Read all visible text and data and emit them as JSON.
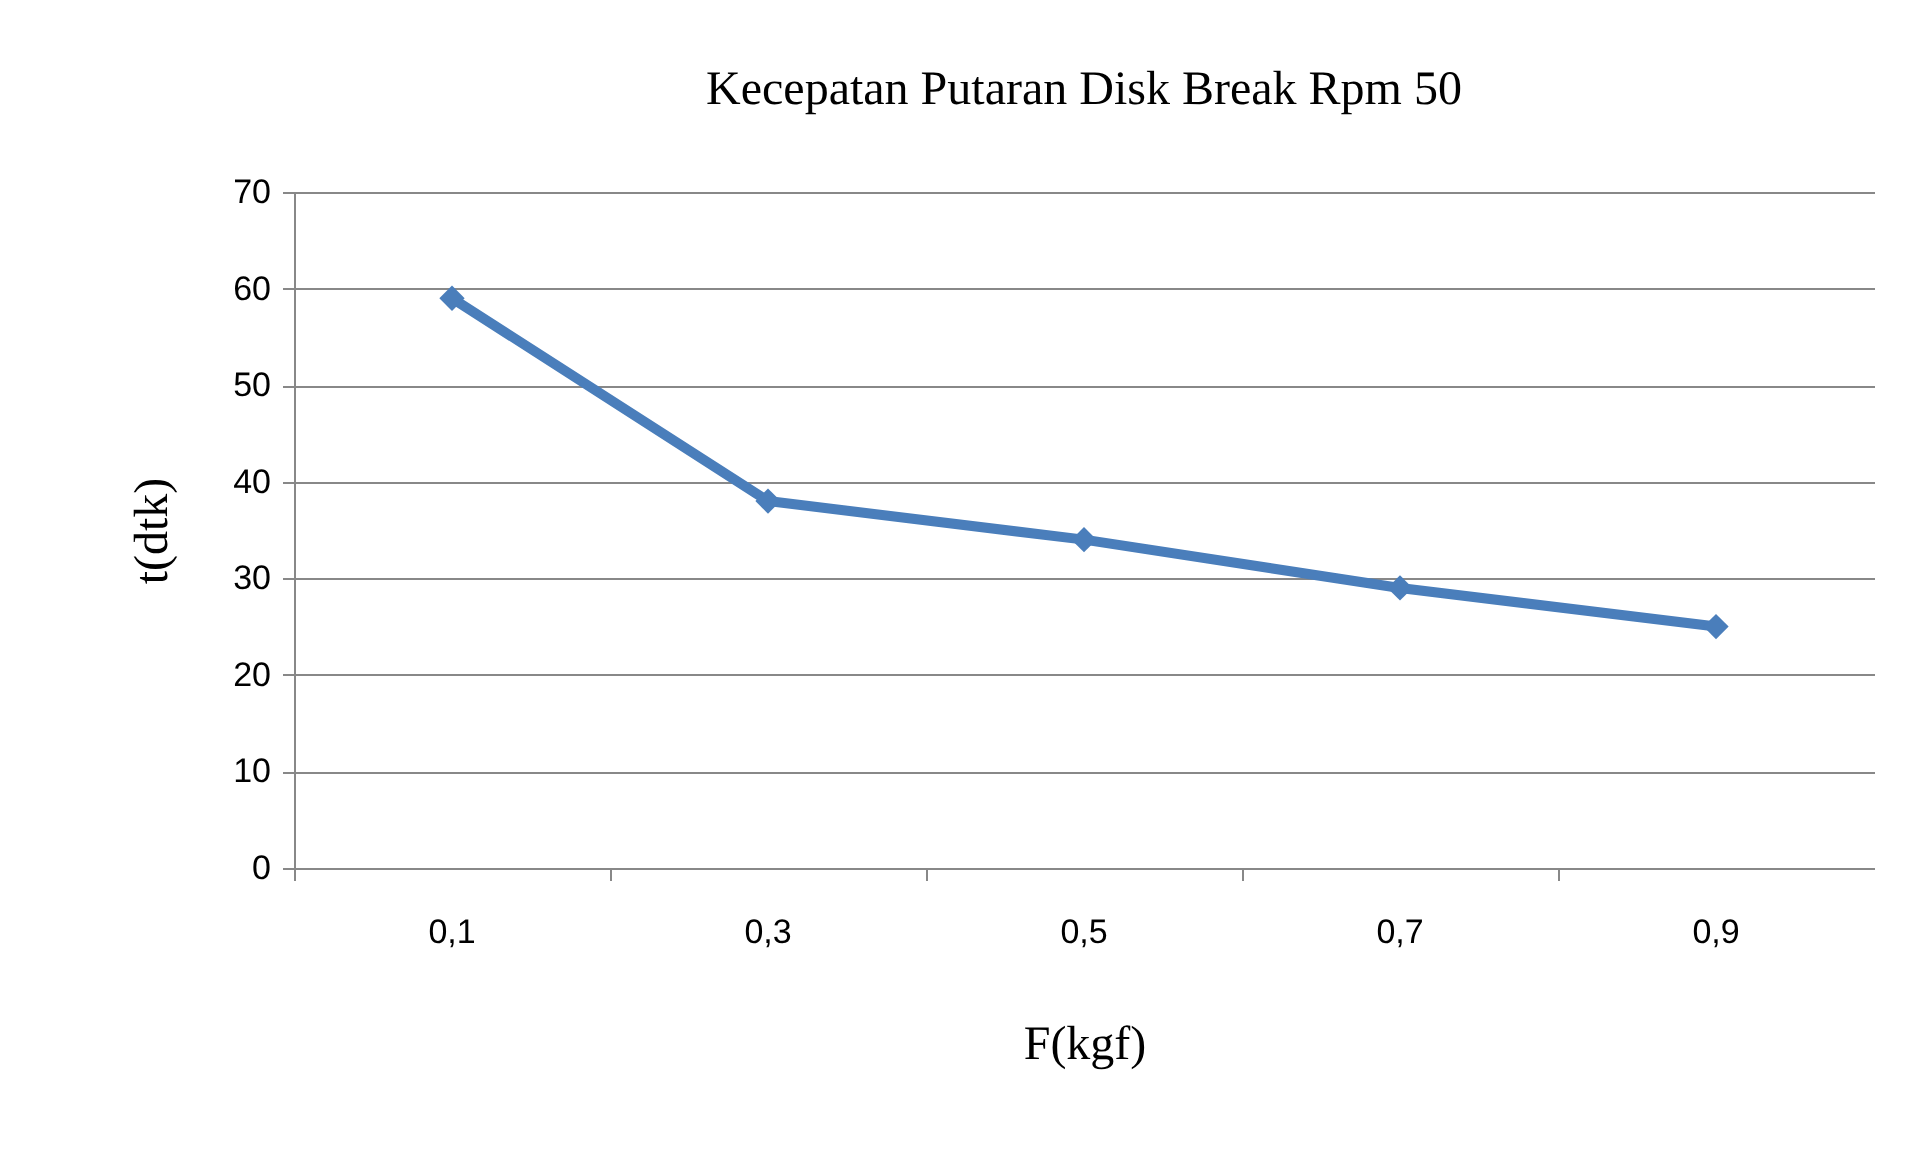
{
  "chart_data": {
    "type": "line",
    "title": "Kecepatan Putaran Disk Break Rpm 50",
    "xlabel": "F(kgf)",
    "ylabel": "t(dtk)",
    "categories": [
      "0,1",
      "0,3",
      "0,5",
      "0,7",
      "0,9"
    ],
    "series": [
      {
        "color": "#4a7ebb",
        "values": [
          59,
          38,
          34,
          29,
          25
        ]
      }
    ],
    "ylim": [
      0,
      70
    ],
    "yticks": [
      0,
      10,
      20,
      30,
      40,
      50,
      60,
      70
    ],
    "grid": "y",
    "marker": "diamond",
    "line_style": "solid",
    "legend": false
  }
}
